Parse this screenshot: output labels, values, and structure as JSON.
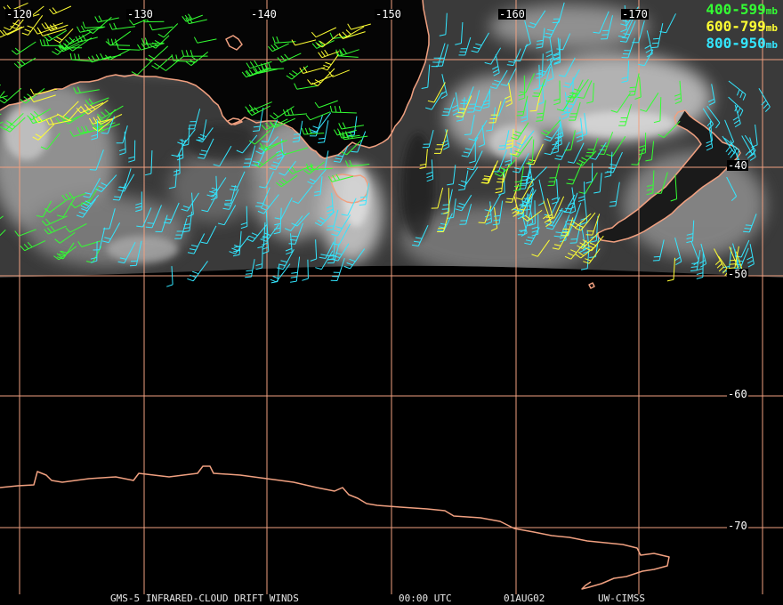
{
  "map": {
    "longitude_labels": [
      "-120",
      "-130",
      "-140",
      "-150",
      "-160",
      "-170"
    ],
    "latitude_labels": [
      "-40",
      "-50",
      "-60",
      "-70"
    ],
    "colors": {
      "grid": "#f0a080",
      "coast": "#f0a080",
      "high": "#33ff33",
      "mid": "#ffff33",
      "low": "#33e6ff"
    }
  },
  "legend": [
    {
      "range": "400-599",
      "unit": "mb",
      "color": "#33ff33"
    },
    {
      "range": "600-799",
      "unit": "mb",
      "color": "#ffff33"
    },
    {
      "range": "800-950",
      "unit": "mb",
      "color": "#33e6ff"
    }
  ],
  "footer": {
    "product": "GMS-5 INFRARED-CLOUD DRIFT WINDS",
    "time": "00:00 UTC",
    "date": "01AUG02",
    "source": "UW-CIMSS"
  }
}
